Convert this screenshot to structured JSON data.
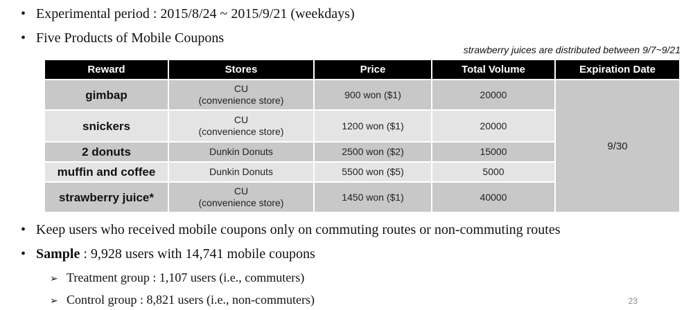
{
  "bullets": {
    "period": "Experimental period : 2015/8/24 ~ 2015/9/21 (weekdays)",
    "products": "Five Products of Mobile Coupons",
    "keep": "Keep users who received mobile coupons only on commuting routes or non-commuting routes",
    "sample_label": "Sample",
    "sample_text": " : 9,928 users with 14,741 mobile coupons"
  },
  "sub_bullets": {
    "treatment": "Treatment group : 1,107 users (i.e., commuters)",
    "control": "Control group : 8,821 users (i.e., non-commuters)"
  },
  "note": "strawberry juices are distributed between 9/7~9/21",
  "table": {
    "headers": [
      "Reward",
      "Stores",
      "Price",
      "Total Volume",
      "Expiration Date"
    ],
    "rows": [
      {
        "reward": "gimbap",
        "store_1": "CU",
        "store_2": "(convenience store)",
        "price": "900 won ($1)",
        "volume": "20000"
      },
      {
        "reward": "snickers",
        "store_1": "CU",
        "store_2": "(convenience store)",
        "price": "1200 won ($1)",
        "volume": "20000"
      },
      {
        "reward": "2 donuts",
        "store_1": "Dunkin Donuts",
        "store_2": "",
        "price": "2500 won ($2)",
        "volume": "15000"
      },
      {
        "reward": "muffin and coffee",
        "store_1": "Dunkin Donuts",
        "store_2": "",
        "price": "5500 won ($5)",
        "volume": "5000"
      },
      {
        "reward": "strawberry juice*",
        "store_1": "CU",
        "store_2": "(convenience store)",
        "price": "1450 won ($1)",
        "volume": "40000"
      }
    ],
    "expiration": "9/30"
  },
  "page_number": "23"
}
